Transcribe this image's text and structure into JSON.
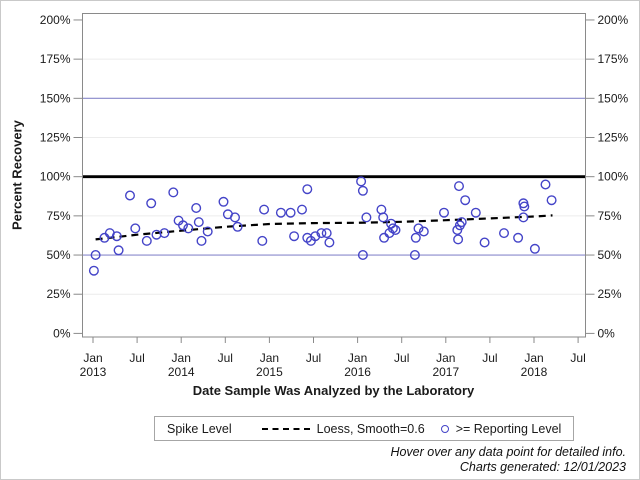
{
  "chart_data": {
    "type": "scatter",
    "title": "",
    "xlabel": "Date Sample Was Analyzed by the Laboratory",
    "ylabel": "Percent Recovery",
    "x_unit": "decimal year",
    "xlim": [
      2012.95,
      2018.62
    ],
    "ylim": [
      0,
      200
    ],
    "grid": "horizontal-light",
    "y_ticks": [
      0,
      25,
      50,
      75,
      100,
      125,
      150,
      175,
      200
    ],
    "y_tick_suffix": "%",
    "y_axis_mirrored": true,
    "x_ticks": [
      {
        "t": 2013.0,
        "month": "Jan",
        "year": "2013"
      },
      {
        "t": 2013.5,
        "month": "Jul",
        "year": ""
      },
      {
        "t": 2014.0,
        "month": "Jan",
        "year": "2014"
      },
      {
        "t": 2014.5,
        "month": "Jul",
        "year": ""
      },
      {
        "t": 2015.0,
        "month": "Jan",
        "year": "2015"
      },
      {
        "t": 2015.5,
        "month": "Jul",
        "year": ""
      },
      {
        "t": 2016.0,
        "month": "Jan",
        "year": "2016"
      },
      {
        "t": 2016.5,
        "month": "Jul",
        "year": ""
      },
      {
        "t": 2017.0,
        "month": "Jan",
        "year": "2017"
      },
      {
        "t": 2017.5,
        "month": "Jul",
        "year": ""
      },
      {
        "t": 2018.0,
        "month": "Jan",
        "year": "2018"
      },
      {
        "t": 2018.5,
        "month": "Jul",
        "year": ""
      }
    ],
    "reference_lines": [
      {
        "value": 150,
        "label": "",
        "color": "#8a8acc",
        "width": 1.2,
        "style": "solid"
      },
      {
        "value": 100,
        "label": "Spike Level",
        "color": "#000000",
        "width": 2.8,
        "style": "solid"
      },
      {
        "value": 50,
        "label": "",
        "color": "#8a8acc",
        "width": 1.2,
        "style": "solid"
      }
    ],
    "legend_title": "Spike Level",
    "legend_position": "bottom",
    "series": [
      {
        "name": "Loess, Smooth=0.6",
        "type": "line",
        "style": "dashed",
        "color": "#000000",
        "points": [
          [
            2013.03,
            60
          ],
          [
            2013.5,
            63
          ],
          [
            2014.0,
            65.5
          ],
          [
            2014.5,
            68
          ],
          [
            2015.0,
            69.8
          ],
          [
            2015.5,
            70.4
          ],
          [
            2016.0,
            70.6
          ],
          [
            2016.5,
            71.2
          ],
          [
            2017.0,
            72.2
          ],
          [
            2017.5,
            73.4
          ],
          [
            2018.0,
            74.6
          ],
          [
            2018.21,
            75.3
          ]
        ]
      },
      {
        "name": ">= Reporting Level",
        "type": "scatter",
        "marker": "open-circle",
        "color": "#4444c8",
        "points": [
          [
            2013.01,
            40
          ],
          [
            2013.03,
            50
          ],
          [
            2013.13,
            61
          ],
          [
            2013.19,
            64
          ],
          [
            2013.27,
            62
          ],
          [
            2013.29,
            53
          ],
          [
            2013.42,
            88
          ],
          [
            2013.48,
            67
          ],
          [
            2013.61,
            59
          ],
          [
            2013.66,
            83
          ],
          [
            2013.72,
            63
          ],
          [
            2013.81,
            64
          ],
          [
            2013.91,
            90
          ],
          [
            2013.97,
            72
          ],
          [
            2014.02,
            69
          ],
          [
            2014.08,
            67
          ],
          [
            2014.17,
            80
          ],
          [
            2014.2,
            71
          ],
          [
            2014.23,
            59
          ],
          [
            2014.3,
            65
          ],
          [
            2014.48,
            84
          ],
          [
            2014.53,
            76
          ],
          [
            2014.61,
            74
          ],
          [
            2014.64,
            68
          ],
          [
            2014.92,
            59
          ],
          [
            2014.94,
            79
          ],
          [
            2015.13,
            77
          ],
          [
            2015.24,
            77
          ],
          [
            2015.28,
            62
          ],
          [
            2015.37,
            79
          ],
          [
            2015.43,
            92
          ],
          [
            2015.43,
            61
          ],
          [
            2015.47,
            59
          ],
          [
            2015.52,
            62
          ],
          [
            2015.59,
            64
          ],
          [
            2015.65,
            64
          ],
          [
            2015.68,
            58
          ],
          [
            2016.04,
            97
          ],
          [
            2016.06,
            91
          ],
          [
            2016.06,
            50
          ],
          [
            2016.1,
            74
          ],
          [
            2016.27,
            79
          ],
          [
            2016.29,
            74
          ],
          [
            2016.3,
            61
          ],
          [
            2016.36,
            64
          ],
          [
            2016.38,
            70
          ],
          [
            2016.4,
            67
          ],
          [
            2016.43,
            66
          ],
          [
            2016.65,
            50
          ],
          [
            2016.66,
            61
          ],
          [
            2016.69,
            67
          ],
          [
            2016.75,
            65
          ],
          [
            2016.98,
            77
          ],
          [
            2017.13,
            66
          ],
          [
            2017.14,
            60
          ],
          [
            2017.15,
            94
          ],
          [
            2017.16,
            69
          ],
          [
            2017.18,
            71
          ],
          [
            2017.22,
            85
          ],
          [
            2017.34,
            77
          ],
          [
            2017.44,
            58
          ],
          [
            2017.66,
            64
          ],
          [
            2017.82,
            61
          ],
          [
            2017.88,
            83
          ],
          [
            2017.88,
            74
          ],
          [
            2017.89,
            81
          ],
          [
            2018.01,
            54
          ],
          [
            2018.13,
            95
          ],
          [
            2018.2,
            85
          ]
        ]
      }
    ]
  },
  "legend": {
    "title": "Spike Level",
    "loess_label": "Loess, Smooth=0.6",
    "points_label": ">= Reporting Level"
  },
  "footer": {
    "line1": "Hover over any data point for detailed info.",
    "line2": "Charts generated: 12/01/2023"
  },
  "colors": {
    "marker": "#4444c8",
    "reference_blue": "#8a8acc",
    "spike_line": "#000000",
    "gridline": "#ececec",
    "frame": "#8a8a8a",
    "text": "#1a1a1a"
  }
}
